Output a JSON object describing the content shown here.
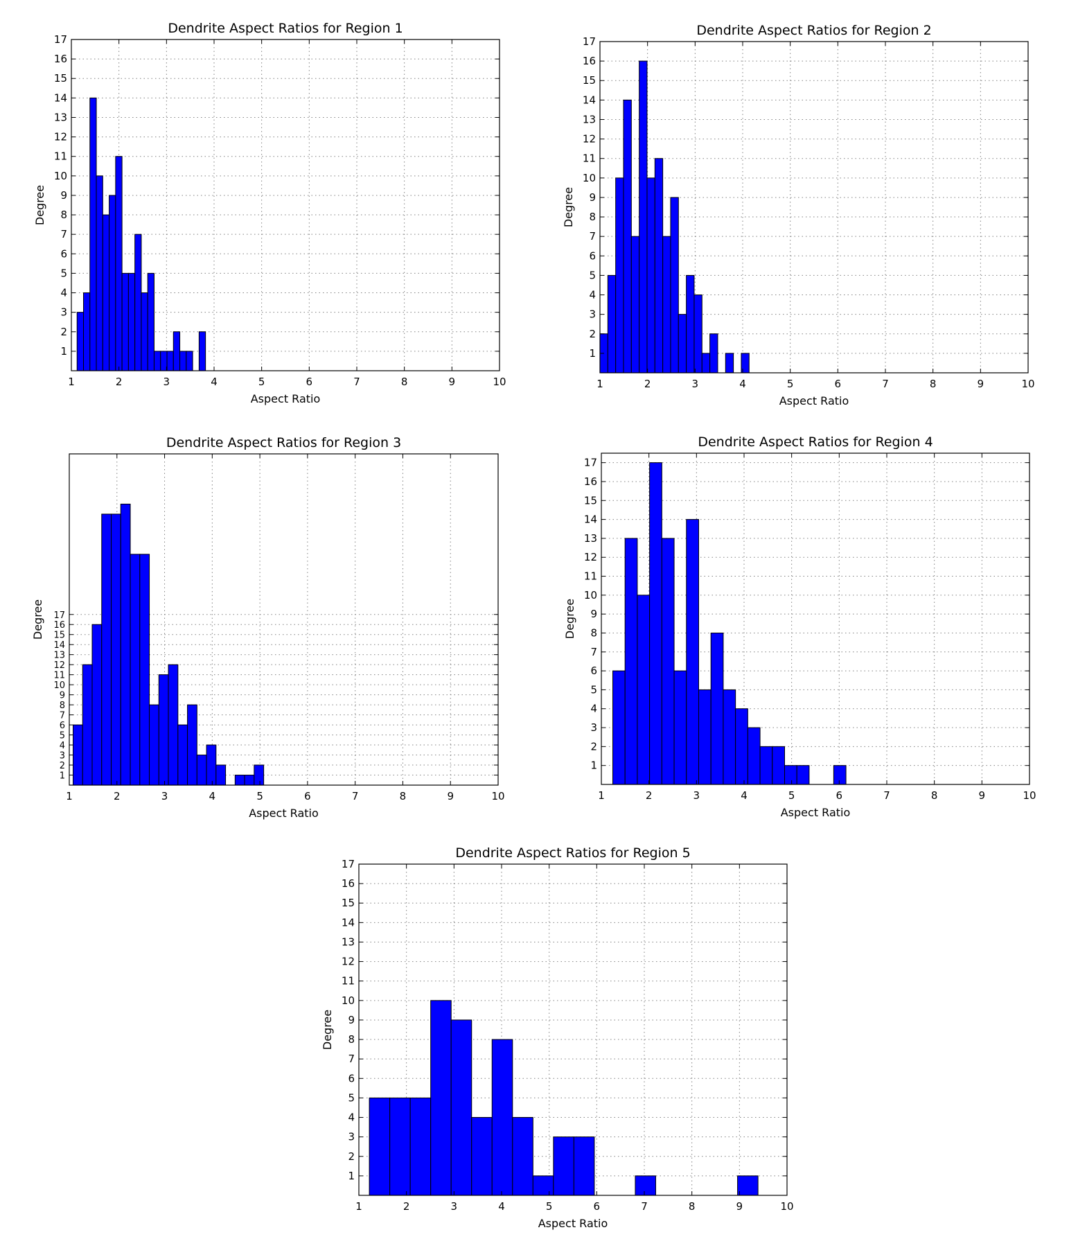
{
  "chart_data": [
    {
      "type": "bar",
      "title": "Dendrite Aspect Ratios for Region 1",
      "xlabel": "Aspect Ratio",
      "ylabel": "Degree",
      "xlim": [
        1,
        10
      ],
      "ylim": [
        0,
        17
      ],
      "xticks": [
        1,
        2,
        3,
        4,
        5,
        6,
        7,
        8,
        9,
        10
      ],
      "yticks": [
        1,
        2,
        3,
        4,
        5,
        6,
        7,
        8,
        9,
        10,
        11,
        12,
        13,
        14,
        15,
        16,
        17
      ],
      "grid": true,
      "bins": {
        "start": 1.12,
        "width": 0.135,
        "counts": [
          3,
          4,
          14,
          10,
          8,
          9,
          11,
          5,
          5,
          7,
          4,
          5,
          1,
          1,
          1,
          2,
          1,
          1,
          0,
          2
        ]
      }
    },
    {
      "type": "bar",
      "title": "Dendrite Aspect Ratios for Region 2",
      "xlabel": "Aspect Ratio",
      "ylabel": "Degree",
      "xlim": [
        1,
        10
      ],
      "ylim": [
        0,
        17
      ],
      "xticks": [
        1,
        2,
        3,
        4,
        5,
        6,
        7,
        8,
        9,
        10
      ],
      "yticks": [
        1,
        2,
        3,
        4,
        5,
        6,
        7,
        8,
        9,
        10,
        11,
        12,
        13,
        14,
        15,
        16,
        17
      ],
      "grid": true,
      "bins": {
        "start": 1.0,
        "width": 0.165,
        "counts": [
          2,
          5,
          10,
          14,
          7,
          16,
          10,
          11,
          7,
          9,
          3,
          5,
          4,
          1,
          2,
          0,
          1,
          0,
          1
        ]
      }
    },
    {
      "type": "bar",
      "title": "Dendrite Aspect Ratios for Region 3",
      "xlabel": "Aspect Ratio",
      "ylabel": "Degree",
      "xlim": [
        1,
        10
      ],
      "ylim": [
        0,
        33
      ],
      "xticks": [
        1,
        2,
        3,
        4,
        5,
        6,
        7,
        8,
        9,
        10
      ],
      "yticks": [
        1,
        2,
        3,
        4,
        5,
        6,
        7,
        8,
        9,
        10,
        11,
        12,
        13,
        14,
        15,
        16,
        17
      ],
      "grid": true,
      "bins": {
        "start": 1.08,
        "width": 0.2,
        "counts": [
          6,
          12,
          16,
          27,
          27,
          28,
          23,
          23,
          8,
          11,
          12,
          6,
          8,
          3,
          4,
          2,
          0,
          1,
          1,
          2
        ]
      }
    },
    {
      "type": "bar",
      "title": "Dendrite Aspect Ratios for Region 4",
      "xlabel": "Aspect Ratio",
      "ylabel": "Degree",
      "xlim": [
        1,
        10
      ],
      "ylim": [
        0,
        17.5
      ],
      "xticks": [
        1,
        2,
        3,
        4,
        5,
        6,
        7,
        8,
        9,
        10
      ],
      "yticks": [
        1,
        2,
        3,
        4,
        5,
        6,
        7,
        8,
        9,
        10,
        11,
        12,
        13,
        14,
        15,
        16,
        17
      ],
      "grid": true,
      "bins": {
        "start": 1.24,
        "width": 0.258,
        "counts": [
          6,
          13,
          10,
          17,
          13,
          6,
          14,
          5,
          8,
          5,
          4,
          3,
          2,
          2,
          1,
          1,
          0,
          0,
          1
        ]
      }
    },
    {
      "type": "bar",
      "title": "Dendrite Aspect Ratios for Region 5",
      "xlabel": "Aspect Ratio",
      "ylabel": "Degree",
      "xlim": [
        1,
        10
      ],
      "ylim": [
        0,
        17
      ],
      "xticks": [
        1,
        2,
        3,
        4,
        5,
        6,
        7,
        8,
        9,
        10
      ],
      "yticks": [
        1,
        2,
        3,
        4,
        5,
        6,
        7,
        8,
        9,
        10,
        11,
        12,
        13,
        14,
        15,
        16,
        17
      ],
      "grid": true,
      "bins": {
        "start": 1.22,
        "width": 0.43,
        "counts": [
          5,
          5,
          5,
          10,
          9,
          4,
          8,
          4,
          1,
          3,
          3,
          0,
          0,
          1,
          0,
          0,
          0,
          0,
          1
        ]
      }
    }
  ]
}
